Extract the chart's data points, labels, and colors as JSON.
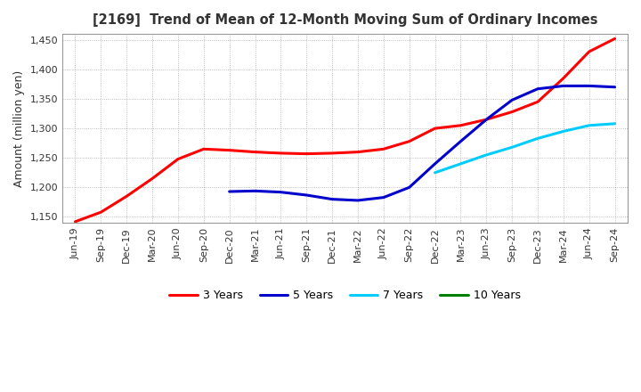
{
  "title": "[2169]  Trend of Mean of 12-Month Moving Sum of Ordinary Incomes",
  "ylabel": "Amount (million yen)",
  "background_color": "#ffffff",
  "plot_bg_color": "#ffffff",
  "grid_color": "#aaaaaa",
  "ylim": [
    1140,
    1460
  ],
  "yticks": [
    1150,
    1200,
    1250,
    1300,
    1350,
    1400,
    1450
  ],
  "legend": [
    "3 Years",
    "5 Years",
    "7 Years",
    "10 Years"
  ],
  "line_colors": [
    "#ff0000",
    "#0000cd",
    "#00ccff",
    "#008000"
  ],
  "x_labels": [
    "Jun-19",
    "Sep-19",
    "Dec-19",
    "Mar-20",
    "Jun-20",
    "Sep-20",
    "Dec-20",
    "Mar-21",
    "Jun-21",
    "Sep-21",
    "Dec-21",
    "Mar-22",
    "Jun-22",
    "Sep-22",
    "Dec-22",
    "Mar-23",
    "Jun-23",
    "Sep-23",
    "Dec-23",
    "Mar-24",
    "Jun-24",
    "Sep-24"
  ],
  "series_3y": [
    1142,
    1158,
    1185,
    1215,
    1248,
    1265,
    1263,
    1260,
    1258,
    1257,
    1258,
    1260,
    1265,
    1278,
    1300,
    1305,
    1315,
    1328,
    1345,
    1385,
    1430,
    1452
  ],
  "series_5y": [
    null,
    null,
    null,
    null,
    null,
    null,
    1193,
    1194,
    1192,
    1187,
    1180,
    1178,
    1183,
    1200,
    1240,
    1278,
    1315,
    1348,
    1367,
    1372,
    1372,
    1370
  ],
  "series_7y": [
    null,
    null,
    null,
    null,
    null,
    null,
    null,
    null,
    null,
    null,
    null,
    null,
    null,
    null,
    1225,
    1240,
    1255,
    1268,
    1283,
    1295,
    1305,
    1308
  ],
  "series_10y": [
    null,
    null,
    null,
    null,
    null,
    null,
    null,
    null,
    null,
    null,
    null,
    null,
    null,
    null,
    null,
    null,
    null,
    null,
    null,
    null,
    null,
    null
  ]
}
